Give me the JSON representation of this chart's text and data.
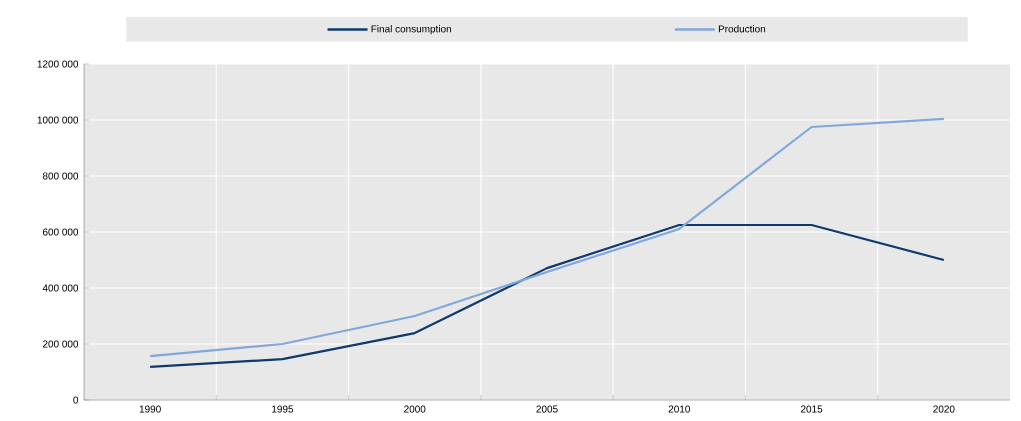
{
  "chart_data": {
    "type": "line",
    "categories": [
      "1990",
      "1995",
      "2000",
      "2005",
      "2010",
      "2015",
      "2020"
    ],
    "series": [
      {
        "name": "Final consumption",
        "color": "#0e3a6e",
        "values": [
          118000,
          146000,
          239000,
          471000,
          625000,
          625000,
          500000
        ]
      },
      {
        "name": "Production",
        "color": "#80a8dc",
        "values": [
          157000,
          200000,
          300000,
          457000,
          611000,
          975000,
          1004000
        ]
      }
    ],
    "ylim": [
      0,
      1200000
    ],
    "yticks": [
      0,
      {
        "value": 200000,
        "label": "200 000"
      },
      {
        "value": 400000,
        "label": "400 000"
      },
      {
        "value": 600000,
        "label": "600 000"
      },
      {
        "value": 800000,
        "label": "800 000"
      },
      {
        "value": 1000000,
        "label": "1000 000"
      },
      {
        "value": 1200000,
        "label": "1200 000"
      }
    ],
    "grid": true,
    "legend": "top",
    "marker": "none",
    "line_style": "solid"
  }
}
